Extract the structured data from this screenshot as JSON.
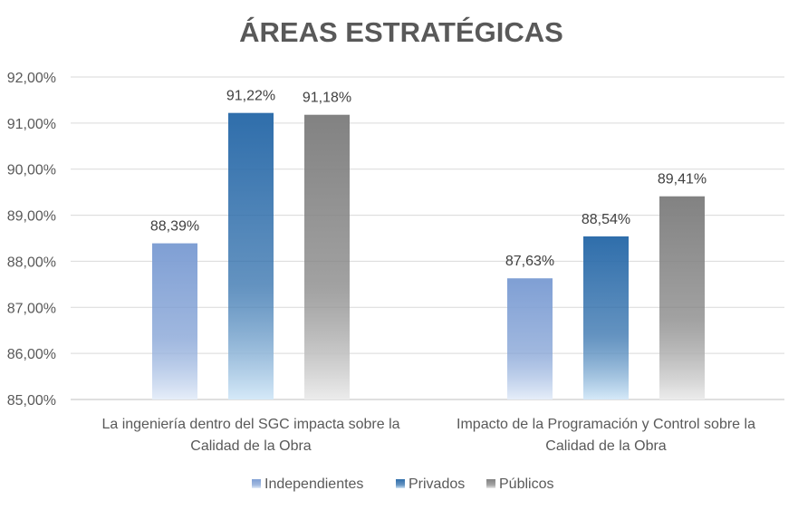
{
  "chart_data": {
    "type": "bar",
    "title": "ÁREAS ESTRATÉGICAS",
    "xlabel": "",
    "ylabel": "",
    "ylim": [
      85,
      92
    ],
    "y_ticks": [
      85,
      86,
      87,
      88,
      89,
      90,
      91,
      92
    ],
    "y_tick_labels": [
      "85,00%",
      "86,00%",
      "87,00%",
      "88,00%",
      "89,00%",
      "90,00%",
      "91,00%",
      "92,00%"
    ],
    "grid": true,
    "legend_position": "bottom",
    "categories": [
      [
        "La ingeniería dentro del SGC impacta sobre la",
        "Calidad de la Obra"
      ],
      [
        "Impacto de la Programación y Control sobre la",
        "Calidad de la Obra"
      ]
    ],
    "series": [
      {
        "name": "Independientes",
        "values": [
          88.39,
          87.63
        ],
        "labels": [
          "88,39%",
          "87,63%"
        ],
        "color_top": "#7f9fd4",
        "color_bottom": "#e6eef9"
      },
      {
        "name": "Privados",
        "values": [
          91.22,
          88.54
        ],
        "labels": [
          "91,22%",
          "88,54%"
        ],
        "color_top": "#2f6eab",
        "color_bottom": "#d5e9f8"
      },
      {
        "name": "Públicos",
        "values": [
          91.18,
          89.41
        ],
        "labels": [
          "91,18%",
          "89,41%"
        ],
        "color_top": "#828282",
        "color_bottom": "#ececec"
      }
    ]
  }
}
